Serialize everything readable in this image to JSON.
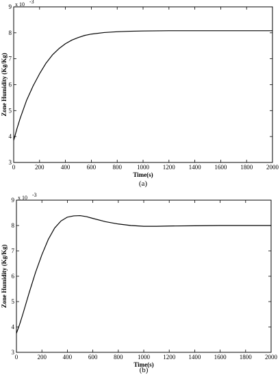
{
  "chart_data": [
    {
      "type": "line",
      "caption": "(a)",
      "xlabel": "Time(s)",
      "ylabel": "Zone Humidity (Kg/Kg)",
      "y_multiplier": "x 10",
      "y_multiplier_exp": "-3",
      "xlim": [
        0,
        2000
      ],
      "ylim": [
        3,
        9
      ],
      "xticks": [
        0,
        200,
        400,
        600,
        800,
        1000,
        1200,
        1400,
        1600,
        1800,
        2000
      ],
      "yticks": [
        3,
        4,
        5,
        6,
        7,
        8,
        9
      ],
      "grid": false,
      "series": [
        {
          "color": "#000000",
          "x": [
            0,
            25,
            50,
            100,
            150,
            200,
            250,
            300,
            350,
            400,
            450,
            500,
            550,
            600,
            700,
            800,
            900,
            1000,
            1200,
            1400,
            1600,
            1800,
            2000
          ],
          "y": [
            3.85,
            4.3,
            4.7,
            5.4,
            5.95,
            6.42,
            6.83,
            7.15,
            7.39,
            7.58,
            7.72,
            7.82,
            7.9,
            7.95,
            8.01,
            8.04,
            8.06,
            8.07,
            8.08,
            8.08,
            8.08,
            8.08,
            8.08
          ]
        }
      ]
    },
    {
      "type": "line",
      "caption": "(b)",
      "xlabel": "Time(s)",
      "ylabel": "Zone Humidity (Kg/Kg)",
      "y_multiplier": "x 10",
      "y_multiplier_exp": "-3",
      "xlim": [
        0,
        2000
      ],
      "ylim": [
        3,
        9
      ],
      "xticks": [
        0,
        200,
        400,
        600,
        800,
        1000,
        1200,
        1400,
        1600,
        1800,
        2000
      ],
      "yticks": [
        3,
        4,
        5,
        6,
        7,
        8,
        9
      ],
      "grid": false,
      "series": [
        {
          "color": "#000000",
          "x": [
            0,
            25,
            50,
            100,
            150,
            200,
            250,
            300,
            350,
            400,
            450,
            500,
            550,
            600,
            700,
            800,
            900,
            1000,
            1100,
            1200,
            1400,
            1600,
            1800,
            2000
          ],
          "y": [
            3.75,
            4.1,
            4.5,
            5.35,
            6.15,
            6.85,
            7.45,
            7.9,
            8.18,
            8.33,
            8.38,
            8.39,
            8.35,
            8.28,
            8.15,
            8.06,
            8.0,
            7.97,
            7.97,
            7.98,
            7.99,
            8.0,
            8.0,
            8.0
          ]
        }
      ]
    }
  ]
}
